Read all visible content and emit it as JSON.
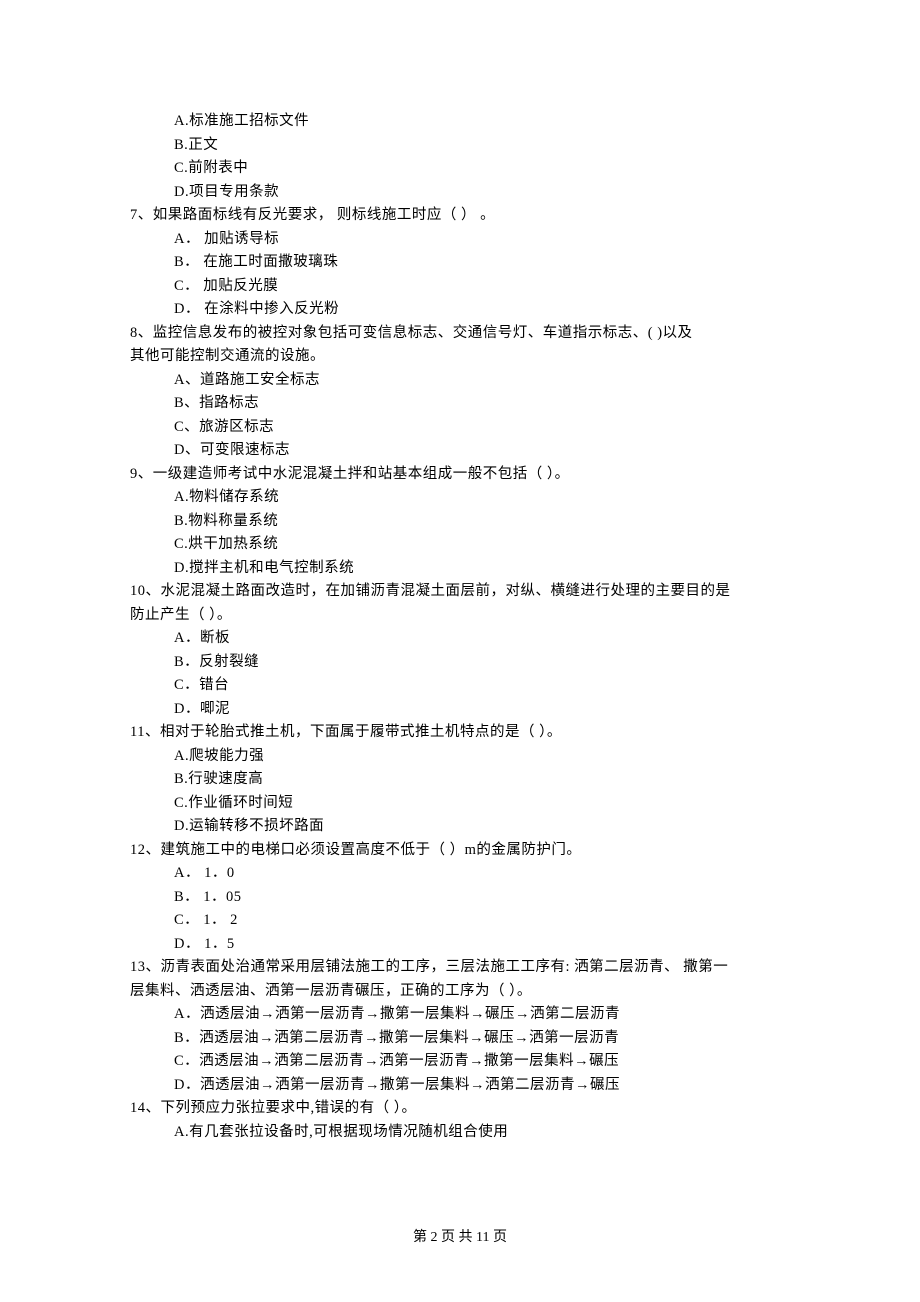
{
  "options_pre": [
    "A.标准施工招标文件",
    "B.正文",
    "C.前附表中",
    "D.项目专用条款"
  ],
  "q7": {
    "text": "7、如果路面标线有反光要求，  则标线施工时应（     ）  。",
    "options": [
      "A． 加贴诱导标",
      "B． 在施工时面撒玻璃珠",
      "C． 加贴反光膜",
      "D． 在涂料中掺入反光粉"
    ]
  },
  "q8": {
    "line1": "8、监控信息发布的被控对象包括可变信息标志、交通信号灯、车道指示标志、(    )以及",
    "line2": "其他可能控制交通流的设施。",
    "options": [
      "A、道路施工安全标志",
      "B、指路标志",
      "C、旅游区标志",
      "D、可变限速标志"
    ]
  },
  "q9": {
    "text": "9、一级建造师考试中水泥混凝土拌和站基本组成一般不包括（     ）。",
    "options": [
      "A.物料储存系统",
      "B.物料称量系统",
      "C.烘干加热系统",
      "D.搅拌主机和电气控制系统"
    ]
  },
  "q10": {
    "line1": "10、水泥混凝土路面改造时，在加铺沥青混凝土面层前，对纵、横缝进行处理的主要目的是",
    "line2": "防止产生（     ）。",
    "options": [
      "A．断板",
      "B．反射裂缝",
      "C．错台",
      "D．唧泥"
    ]
  },
  "q11": {
    "text": "11、相对于轮胎式推土机，下面属于履带式推土机特点的是（     ）。",
    "options": [
      "A.爬坡能力强",
      "B.行驶速度高",
      "C.作业循环时间短",
      "D.运输转移不损坏路面"
    ]
  },
  "q12": {
    "text": "12、建筑施工中的电梯口必须设置高度不低于（     ）m的金属防护门。",
    "options": [
      "A． 1．0",
      "B． 1．05",
      "C． 1． 2",
      "D． 1．5"
    ]
  },
  "q13": {
    "line1": "13、沥青表面处治通常采用层铺法施工的工序，三层法施工工序有: 洒第二层沥青、 撒第一",
    "line2": "层集料、洒透层油、洒第一层沥青碾压，正确的工序为（     ）。",
    "options": [
      "A．洒透层油→洒第一层沥青→撒第一层集料→碾压→洒第二层沥青",
      "B．洒透层油→洒第二层沥青→撒第一层集料→碾压→洒第一层沥青",
      "C．洒透层油→洒第二层沥青→洒第一层沥青→撒第一层集料→碾压",
      "D．洒透层油→洒第一层沥青→撒第一层集料→洒第二层沥青→碾压"
    ]
  },
  "q14": {
    "text": "14、下列预应力张拉要求中,错误的有（     ）。",
    "options": [
      "A.有几套张拉设备时,可根据现场情况随机组合使用"
    ]
  },
  "footer": "第 2 页 共 11 页"
}
